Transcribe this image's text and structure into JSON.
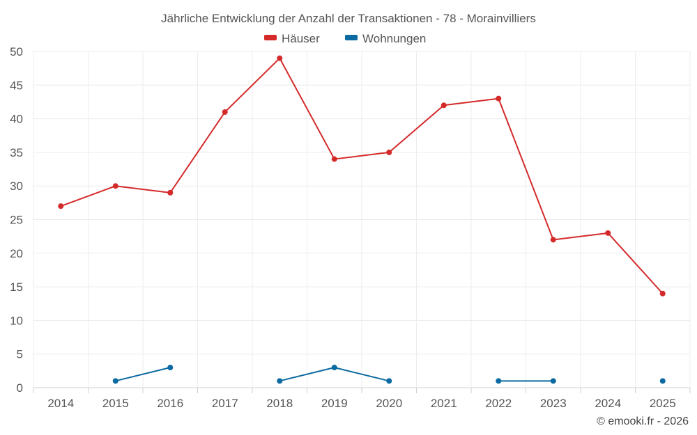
{
  "chart_data": {
    "type": "line",
    "title": "Jährliche Entwicklung der Anzahl der Transaktionen - 78 - Morainvilliers",
    "categories": [
      "2014",
      "2015",
      "2016",
      "2017",
      "2018",
      "2019",
      "2020",
      "2021",
      "2022",
      "2023",
      "2024",
      "2025"
    ],
    "series": [
      {
        "name": "Häuser",
        "color": "#d42a2a",
        "values": [
          27,
          30,
          29,
          41,
          49,
          34,
          35,
          42,
          43,
          22,
          23,
          14
        ]
      },
      {
        "name": "Wohnungen",
        "color": "#0a6aa1",
        "values": [
          null,
          1,
          3,
          null,
          1,
          3,
          1,
          null,
          1,
          1,
          null,
          1
        ]
      }
    ],
    "ylim": [
      0,
      50
    ],
    "yticks": [
      0,
      5,
      10,
      15,
      20,
      25,
      30,
      35,
      40,
      45,
      50
    ],
    "grid": true,
    "legend_position": "top-center",
    "xlabel": "",
    "ylabel": ""
  },
  "credit": "© emooki.fr - 2026"
}
